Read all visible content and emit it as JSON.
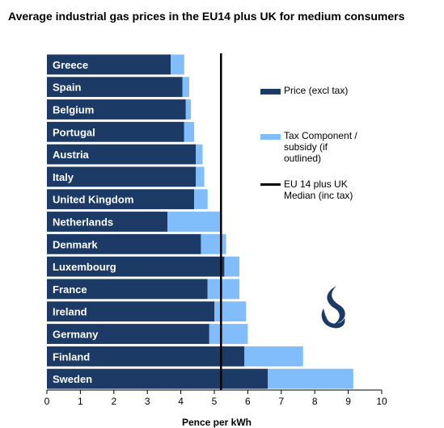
{
  "chart_data": {
    "type": "bar",
    "orientation": "horizontal",
    "stacked": true,
    "title": "Average industrial gas prices in the EU14 plus UK for medium consumers",
    "xlabel": "Pence per kWh",
    "ylabel": "",
    "xlim": [
      0,
      10
    ],
    "xticks": [
      "0",
      "1",
      "2",
      "3",
      "4",
      "5",
      "6",
      "7",
      "8",
      "9",
      "10"
    ],
    "categories": [
      "Greece",
      "Spain",
      "Belgium",
      "Portugal",
      "Austria",
      "Italy",
      "United Kingdom",
      "Netherlands",
      "Denmark",
      "Luxembourg",
      "France",
      "Ireland",
      "Germany",
      "Finland",
      "Sweden"
    ],
    "series": [
      {
        "name": "Price (excl tax)",
        "color": "#1b3a66",
        "values": [
          3.7,
          4.05,
          4.15,
          4.1,
          4.45,
          4.45,
          4.4,
          3.6,
          4.6,
          5.3,
          4.8,
          5.0,
          4.85,
          5.9,
          6.6
        ]
      },
      {
        "name": "Tax Component / subsidy (if outlined)",
        "color": "#80bdfa",
        "values": [
          0.4,
          0.2,
          0.15,
          0.3,
          0.2,
          0.25,
          0.4,
          1.6,
          0.75,
          0.45,
          0.95,
          0.95,
          1.15,
          1.75,
          2.55
        ]
      }
    ],
    "median": {
      "name": "EU 14 plus UK Median (inc tax)",
      "value": 5.2,
      "color": "#000000"
    },
    "legend": {
      "placement": "right",
      "items": [
        {
          "label_lines": [
            "Price (excl tax)"
          ],
          "color": "#1b3a66"
        },
        {
          "label_lines": [
            "Tax Component /",
            "subsidy (if",
            "outlined)"
          ],
          "color": "#80bdfa"
        },
        {
          "label_lines": [
            "EU 14 plus UK",
            "Median (inc tax)"
          ],
          "color": "#000000"
        }
      ]
    },
    "grid": false
  },
  "logo": {
    "name": "flame-logo",
    "color": "#1b3a66"
  }
}
